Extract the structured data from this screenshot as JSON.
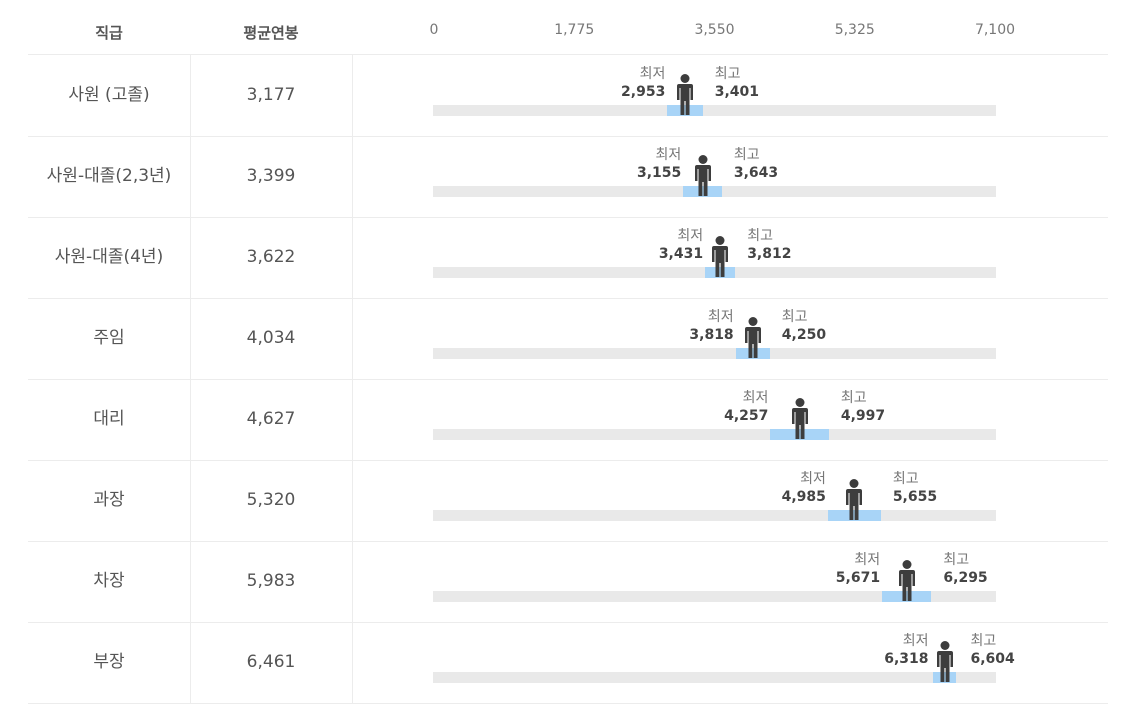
{
  "header": {
    "col_rank": "직급",
    "col_avg": "평균연봉"
  },
  "chart_data": {
    "type": "range",
    "x_ticks": [
      "0",
      "1,775",
      "3,550",
      "5,325",
      "7,100"
    ],
    "xlim": [
      0,
      7100
    ],
    "min_caption": "최저",
    "max_caption": "최고",
    "colors": {
      "track": "#e9e9e9",
      "range": "#a8d4f7",
      "person": "#3d3d3d"
    },
    "rows": [
      {
        "rank": "사원 (고졸)",
        "avg": 3177,
        "avg_label": "3,177",
        "min": 2953,
        "min_label": "2,953",
        "max": 3401,
        "max_label": "3,401"
      },
      {
        "rank": "사원-대졸(2,3년)",
        "avg": 3399,
        "avg_label": "3,399",
        "min": 3155,
        "min_label": "3,155",
        "max": 3643,
        "max_label": "3,643"
      },
      {
        "rank": "사원-대졸(4년)",
        "avg": 3622,
        "avg_label": "3,622",
        "min": 3431,
        "min_label": "3,431",
        "max": 3812,
        "max_label": "3,812"
      },
      {
        "rank": "주임",
        "avg": 4034,
        "avg_label": "4,034",
        "min": 3818,
        "min_label": "3,818",
        "max": 4250,
        "max_label": "4,250"
      },
      {
        "rank": "대리",
        "avg": 4627,
        "avg_label": "4,627",
        "min": 4257,
        "min_label": "4,257",
        "max": 4997,
        "max_label": "4,997"
      },
      {
        "rank": "과장",
        "avg": 5320,
        "avg_label": "5,320",
        "min": 4985,
        "min_label": "4,985",
        "max": 5655,
        "max_label": "5,655"
      },
      {
        "rank": "차장",
        "avg": 5983,
        "avg_label": "5,983",
        "min": 5671,
        "min_label": "5,671",
        "max": 6295,
        "max_label": "6,295"
      },
      {
        "rank": "부장",
        "avg": 6461,
        "avg_label": "6,461",
        "min": 6318,
        "min_label": "6,318",
        "max": 6604,
        "max_label": "6,604"
      }
    ]
  }
}
